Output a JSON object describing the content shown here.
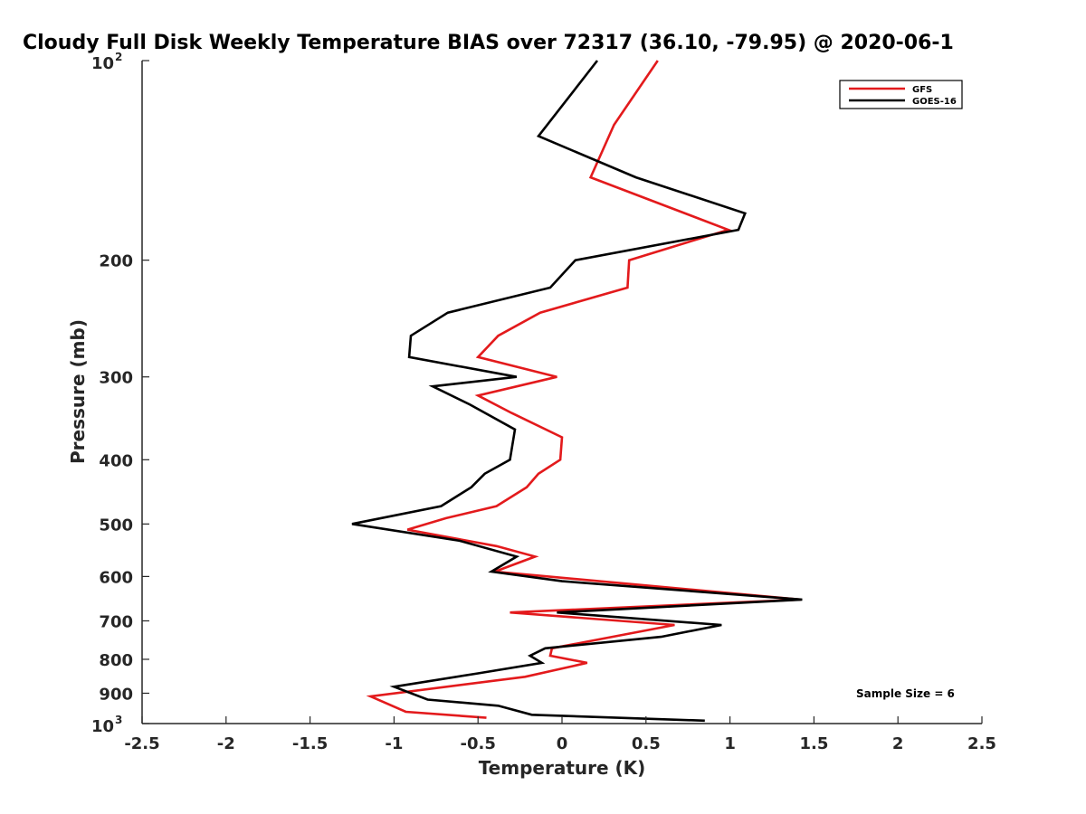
{
  "chart_data": {
    "type": "line",
    "title": "Cloudy Full Disk Weekly Temperature BIAS over 72317 (36.10, -79.95) @ 2020-06-1",
    "xlabel": "Temperature (K)",
    "ylabel": "Pressure (mb)",
    "xlim": [
      -2.5,
      2.5
    ],
    "ylim": [
      100,
      1000
    ],
    "y_scale": "log",
    "y_reversed": true,
    "x_ticks": [
      -2.5,
      -2,
      -1.5,
      -1,
      -0.5,
      0,
      0.5,
      1,
      1.5,
      2,
      2.5
    ],
    "x_tick_labels": [
      "-2.5",
      "-2",
      "-1.5",
      "-1",
      "-0.5",
      "0",
      "0.5",
      "1",
      "1.5",
      "2",
      "2.5"
    ],
    "y_ticks": [
      {
        "value": 100,
        "base": "10",
        "exp": "2"
      },
      {
        "value": 200,
        "label": "200"
      },
      {
        "value": 300,
        "label": "300"
      },
      {
        "value": 400,
        "label": "400"
      },
      {
        "value": 500,
        "label": "500"
      },
      {
        "value": 600,
        "label": "600"
      },
      {
        "value": 700,
        "label": "700"
      },
      {
        "value": 800,
        "label": "800"
      },
      {
        "value": 900,
        "label": "900"
      },
      {
        "value": 1000,
        "base": "10",
        "exp": "3"
      }
    ],
    "grid": false,
    "legend_position": "top-right",
    "annotation": "Sample Size = 6",
    "series": [
      {
        "name": "GFS",
        "color": "#e31a1c",
        "points": [
          {
            "x": 0.57,
            "p": 100
          },
          {
            "x": 0.31,
            "p": 125
          },
          {
            "x": 0.17,
            "p": 150
          },
          {
            "x": 0.99,
            "p": 180
          },
          {
            "x": 0.4,
            "p": 200
          },
          {
            "x": 0.39,
            "p": 220
          },
          {
            "x": -0.13,
            "p": 240
          },
          {
            "x": -0.38,
            "p": 260
          },
          {
            "x": -0.5,
            "p": 280
          },
          {
            "x": -0.03,
            "p": 300
          },
          {
            "x": -0.5,
            "p": 320
          },
          {
            "x": -0.3,
            "p": 340
          },
          {
            "x": 0.0,
            "p": 370
          },
          {
            "x": -0.01,
            "p": 400
          },
          {
            "x": -0.14,
            "p": 420
          },
          {
            "x": -0.21,
            "p": 440
          },
          {
            "x": -0.39,
            "p": 470
          },
          {
            "x": -0.69,
            "p": 490
          },
          {
            "x": -0.92,
            "p": 510
          },
          {
            "x": -0.39,
            "p": 540
          },
          {
            "x": -0.16,
            "p": 560
          },
          {
            "x": -0.4,
            "p": 590
          },
          {
            "x": 1.42,
            "p": 650
          },
          {
            "x": -0.31,
            "p": 680
          },
          {
            "x": 0.67,
            "p": 710
          },
          {
            "x": -0.06,
            "p": 770
          },
          {
            "x": -0.07,
            "p": 790
          },
          {
            "x": 0.15,
            "p": 810
          },
          {
            "x": -0.22,
            "p": 850
          },
          {
            "x": -1.14,
            "p": 910
          },
          {
            "x": -0.93,
            "p": 960
          },
          {
            "x": -0.45,
            "p": 980
          }
        ]
      },
      {
        "name": "GOES-16",
        "color": "#000000",
        "points": [
          {
            "x": 0.21,
            "p": 100
          },
          {
            "x": -0.14,
            "p": 130
          },
          {
            "x": 0.44,
            "p": 150
          },
          {
            "x": 1.09,
            "p": 170
          },
          {
            "x": 1.05,
            "p": 180
          },
          {
            "x": 0.08,
            "p": 200
          },
          {
            "x": -0.07,
            "p": 220
          },
          {
            "x": -0.68,
            "p": 240
          },
          {
            "x": -0.9,
            "p": 260
          },
          {
            "x": -0.91,
            "p": 280
          },
          {
            "x": -0.27,
            "p": 300
          },
          {
            "x": -0.77,
            "p": 310
          },
          {
            "x": -0.55,
            "p": 330
          },
          {
            "x": -0.28,
            "p": 360
          },
          {
            "x": -0.31,
            "p": 400
          },
          {
            "x": -0.46,
            "p": 420
          },
          {
            "x": -0.54,
            "p": 440
          },
          {
            "x": -0.72,
            "p": 470
          },
          {
            "x": -1.25,
            "p": 500
          },
          {
            "x": -0.61,
            "p": 530
          },
          {
            "x": -0.27,
            "p": 560
          },
          {
            "x": -0.42,
            "p": 590
          },
          {
            "x": 0.0,
            "p": 610
          },
          {
            "x": 1.43,
            "p": 650
          },
          {
            "x": -0.03,
            "p": 680
          },
          {
            "x": 0.95,
            "p": 710
          },
          {
            "x": 0.59,
            "p": 740
          },
          {
            "x": -0.1,
            "p": 770
          },
          {
            "x": -0.19,
            "p": 790
          },
          {
            "x": -0.12,
            "p": 810
          },
          {
            "x": -0.5,
            "p": 840
          },
          {
            "x": -1.0,
            "p": 880
          },
          {
            "x": -0.8,
            "p": 920
          },
          {
            "x": -0.38,
            "p": 940
          },
          {
            "x": -0.18,
            "p": 970
          },
          {
            "x": 0.85,
            "p": 990
          }
        ]
      }
    ]
  }
}
